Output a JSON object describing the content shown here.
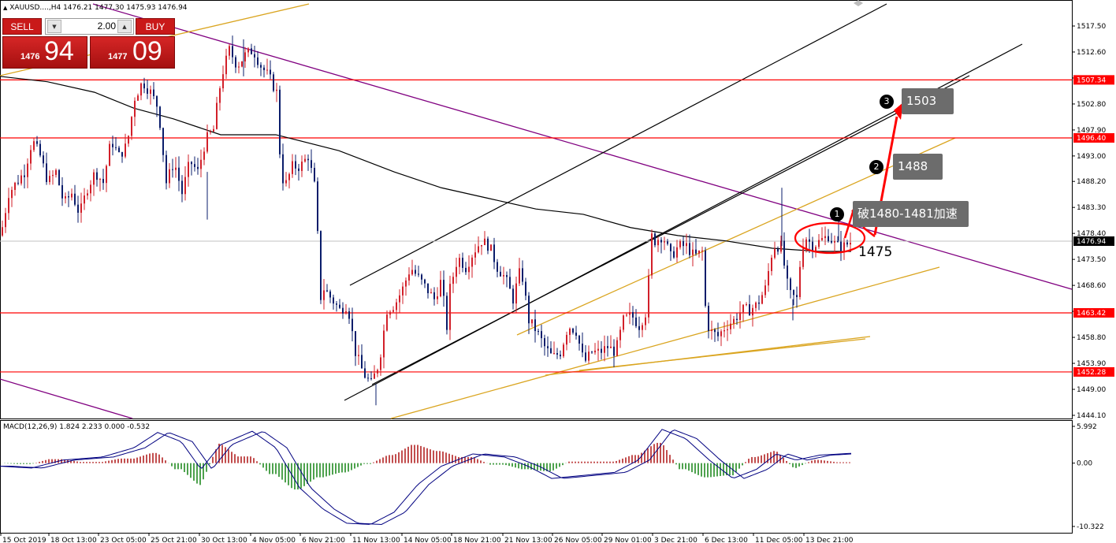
{
  "header": {
    "symbol_line": "XAUUSD....,H4 1476.21 1477.30 1475.93 1476.94"
  },
  "trade_panel": {
    "sell_label": "SELL",
    "buy_label": "BUY",
    "lot_value": "2.00",
    "sell_price_prefix": "1476",
    "sell_price_big": "94",
    "buy_price_prefix": "1477",
    "buy_price_big": "09"
  },
  "price_axis": {
    "ticks": [
      "1517.50",
      "1512.60",
      "1507.70",
      "1502.80",
      "1497.90",
      "1493.00",
      "1488.20",
      "1483.30",
      "1478.40",
      "1473.50",
      "1468.60",
      "1463.70",
      "1458.80",
      "1453.90",
      "1449.00",
      "1444.10"
    ],
    "tick_values": [
      1517.5,
      1512.6,
      1507.7,
      1502.8,
      1497.9,
      1493.0,
      1488.2,
      1483.3,
      1478.4,
      1473.5,
      1468.6,
      1463.7,
      1458.8,
      1453.9,
      1449.0,
      1444.1
    ]
  },
  "time_axis": {
    "labels": [
      "15 Oct 2019",
      "18 Oct 13:00",
      "23 Oct 05:00",
      "25 Oct 21:00",
      "30 Oct 13:00",
      "4 Nov 05:00",
      "6 Nov 21:00",
      "11 Nov 13:00",
      "14 Nov 05:00",
      "18 Nov 21:00",
      "21 Nov 13:00",
      "26 Nov 05:00",
      "29 Nov 01:00",
      "3 Dec 21:00",
      "6 Dec 13:00",
      "11 Dec 05:00",
      "13 Dec 21:00"
    ]
  },
  "horizontal_levels": [
    {
      "value": 1507.34,
      "label": "1507.34"
    },
    {
      "value": 1496.4,
      "label": "1496.40"
    },
    {
      "value": 1463.42,
      "label": "1463.42"
    },
    {
      "value": 1452.28,
      "label": "1452.28"
    }
  ],
  "current_price": {
    "value": 1476.94,
    "label": "1476.94"
  },
  "annotations": {
    "step1_num": "1",
    "step1_text": "破1480-1481加速",
    "step2_num": "2",
    "step2_text": "1488",
    "step3_num": "3",
    "step3_text": "1503",
    "support_label": "1475"
  },
  "macd": {
    "header": "MACD(12,26,9) 1.824 2.233 0.000 -0.532",
    "axis_labels": [
      "5.992",
      "0.00",
      "-10.322"
    ],
    "axis_values": [
      5.992,
      0.0,
      -10.322
    ]
  },
  "colors": {
    "up_candle": "#d2202a",
    "down_candle": "#0a1d6b",
    "level_line": "#ff0000",
    "trend_channel": "#000000",
    "orange_line": "#daa520",
    "purple_line": "#800080",
    "ma_line": "#000000",
    "macd_hist_pos": "#b22222",
    "macd_hist_neg": "#228b22",
    "macd_line": "#000080",
    "macd_signal": "#000080"
  },
  "chart_data": {
    "type": "candlestick",
    "symbol": "XAUUSD",
    "timeframe": "H4",
    "ylim": [
      1442.5,
      1520.5
    ],
    "key_prices": {
      "current": 1476.94,
      "bid": 1476.94,
      "ask": 1477.09
    },
    "price_path": [
      [
        0,
        1478
      ],
      [
        10,
        1486
      ],
      [
        20,
        1488
      ],
      [
        30,
        1490
      ],
      [
        40,
        1496
      ],
      [
        50,
        1493
      ],
      [
        60,
        1488
      ],
      [
        70,
        1490
      ],
      [
        80,
        1484
      ],
      [
        90,
        1486
      ],
      [
        100,
        1482
      ],
      [
        110,
        1487
      ],
      [
        120,
        1490
      ],
      [
        130,
        1488
      ],
      [
        140,
        1496
      ],
      [
        150,
        1493
      ],
      [
        160,
        1495
      ],
      [
        170,
        1504
      ],
      [
        180,
        1507
      ],
      [
        190,
        1505
      ],
      [
        200,
        1502
      ],
      [
        210,
        1488
      ],
      [
        220,
        1492
      ],
      [
        230,
        1486
      ],
      [
        240,
        1492
      ],
      [
        250,
        1490
      ],
      [
        260,
        1496
      ],
      [
        270,
        1498
      ],
      [
        280,
        1508
      ],
      [
        290,
        1513
      ],
      [
        300,
        1510
      ],
      [
        310,
        1512
      ],
      [
        320,
        1513
      ],
      [
        330,
        1510
      ],
      [
        340,
        1508
      ],
      [
        350,
        1505
      ],
      [
        355,
        1491
      ],
      [
        360,
        1487
      ],
      [
        370,
        1491
      ],
      [
        380,
        1491
      ],
      [
        390,
        1493
      ],
      [
        400,
        1486
      ],
      [
        405,
        1466
      ],
      [
        410,
        1468
      ],
      [
        420,
        1466
      ],
      [
        430,
        1464
      ],
      [
        440,
        1465
      ],
      [
        450,
        1456
      ],
      [
        460,
        1452
      ],
      [
        470,
        1450
      ],
      [
        480,
        1454
      ],
      [
        490,
        1464
      ],
      [
        500,
        1465
      ],
      [
        510,
        1468
      ],
      [
        520,
        1472
      ],
      [
        530,
        1470
      ],
      [
        540,
        1468
      ],
      [
        550,
        1466
      ],
      [
        560,
        1470
      ],
      [
        565,
        1459
      ],
      [
        570,
        1468
      ],
      [
        580,
        1474
      ],
      [
        590,
        1472
      ],
      [
        600,
        1475
      ],
      [
        610,
        1477
      ],
      [
        620,
        1476
      ],
      [
        630,
        1472
      ],
      [
        640,
        1470
      ],
      [
        650,
        1466
      ],
      [
        660,
        1472
      ],
      [
        670,
        1462
      ],
      [
        680,
        1460
      ],
      [
        690,
        1457
      ],
      [
        700,
        1455
      ],
      [
        710,
        1456
      ],
      [
        720,
        1461
      ],
      [
        730,
        1460
      ],
      [
        740,
        1454
      ],
      [
        750,
        1456
      ],
      [
        760,
        1456
      ],
      [
        770,
        1457
      ],
      [
        780,
        1456
      ],
      [
        790,
        1462
      ],
      [
        800,
        1463
      ],
      [
        810,
        1461
      ],
      [
        820,
        1464
      ],
      [
        825,
        1478
      ],
      [
        830,
        1477
      ],
      [
        840,
        1478
      ],
      [
        850,
        1474
      ],
      [
        860,
        1476
      ],
      [
        870,
        1476
      ],
      [
        880,
        1474
      ],
      [
        890,
        1475
      ],
      [
        895,
        1462
      ],
      [
        900,
        1460
      ],
      [
        910,
        1459
      ],
      [
        920,
        1461
      ],
      [
        930,
        1462
      ],
      [
        940,
        1464
      ],
      [
        950,
        1464
      ],
      [
        960,
        1465
      ],
      [
        970,
        1468
      ],
      [
        980,
        1476
      ],
      [
        990,
        1476
      ],
      [
        1000,
        1467
      ],
      [
        1010,
        1466
      ],
      [
        1015,
        1474
      ],
      [
        1020,
        1478
      ],
      [
        1030,
        1476
      ],
      [
        1040,
        1477
      ],
      [
        1050,
        1478
      ],
      [
        1060,
        1476
      ],
      [
        1070,
        1476
      ],
      [
        1080,
        1477
      ]
    ],
    "ma_path": [
      [
        0,
        1508
      ],
      [
        60,
        1507
      ],
      [
        120,
        1505
      ],
      [
        170,
        1502
      ],
      [
        220,
        1500
      ],
      [
        280,
        1497
      ],
      [
        350,
        1497
      ],
      [
        430,
        1494
      ],
      [
        500,
        1490
      ],
      [
        560,
        1487
      ],
      [
        620,
        1485
      ],
      [
        680,
        1483
      ],
      [
        740,
        1482
      ],
      [
        800,
        1479.5
      ],
      [
        860,
        1478
      ],
      [
        920,
        1477
      ],
      [
        980,
        1475.6
      ],
      [
        1040,
        1475
      ],
      [
        1080,
        1475
      ]
    ]
  }
}
